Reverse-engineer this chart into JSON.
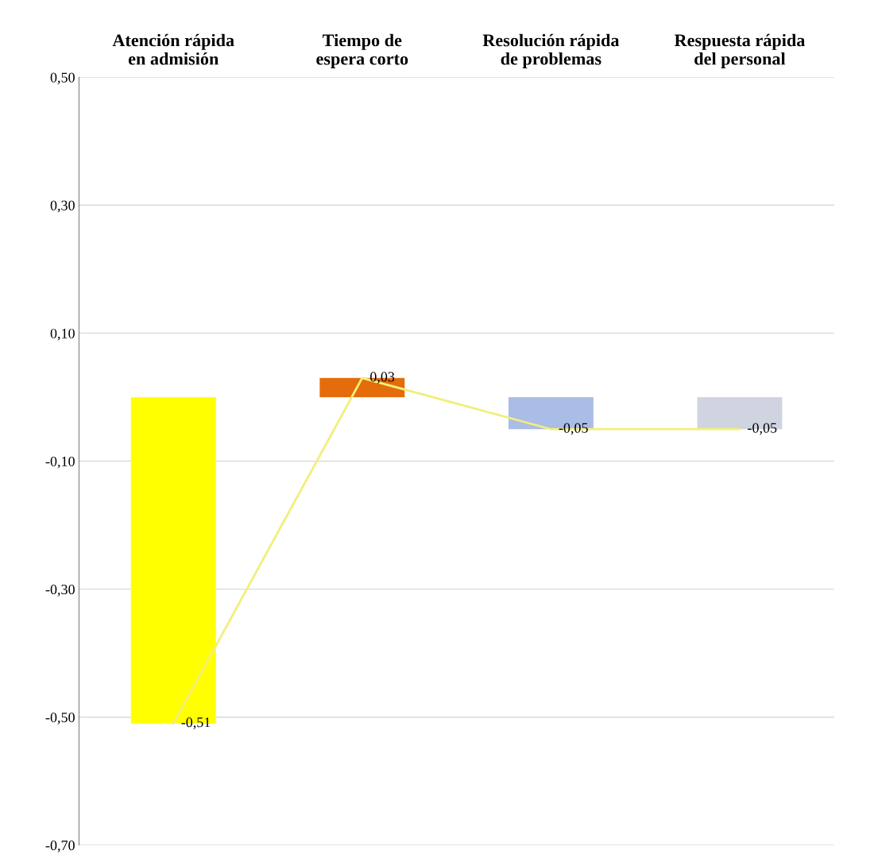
{
  "chart_data": {
    "type": "bar",
    "categories": [
      "Atención rápida en admisión",
      "Tiempo de espera corto",
      "Resolución rápida de problemas",
      "Respuesta rápida del personal"
    ],
    "series": [
      {
        "colors": [
          "#ffff00",
          "#e46c0a",
          "#a9bde6",
          "#d0d4e0"
        ],
        "values": [
          -0.51,
          0.03,
          -0.05,
          -0.05
        ]
      },
      {
        "type": "line",
        "color": "#f2ee7a",
        "values": [
          -0.51,
          0.03,
          -0.05,
          -0.05
        ],
        "value_labels": [
          "-0,51",
          "0,03",
          "-0,05",
          "-0,05"
        ]
      }
    ],
    "ylim": [
      -0.7,
      0.5
    ],
    "yticks": [
      {
        "value": -0.7,
        "label": "-0,70"
      },
      {
        "value": -0.5,
        "label": "-0,50"
      },
      {
        "value": -0.3,
        "label": "-0,30"
      },
      {
        "value": -0.1,
        "label": "-0,10"
      },
      {
        "value": 0.1,
        "label": "0,10"
      },
      {
        "value": 0.3,
        "label": "0,30"
      },
      {
        "value": 0.5,
        "label": "0,50"
      }
    ],
    "grid": "y",
    "legend": false
  }
}
